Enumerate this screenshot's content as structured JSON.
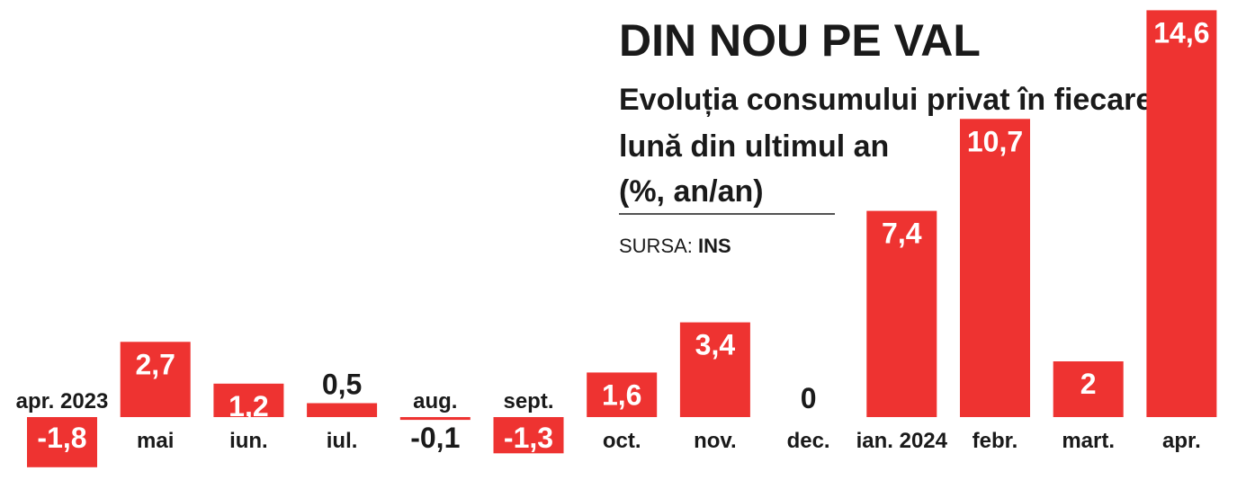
{
  "header": {
    "title": "DIN NOU PE VAL",
    "subtitle_lines": [
      "Evoluția consumului privat în fiecare",
      "lună din ultimul an",
      "(%, an/an)"
    ],
    "source_label": "SURSA:",
    "source_value": "INS"
  },
  "colors": {
    "bar": "#ee3331",
    "text": "#1a1a1a",
    "value_on_bar": "#ffffff"
  },
  "chart_data": {
    "type": "bar",
    "title": "DIN NOU PE VAL",
    "subtitle": "Evoluția consumului privat în fiecare lună din ultimul an (%, an/an)",
    "categories": [
      "apr. 2023",
      "mai",
      "iun.",
      "iul.",
      "aug.",
      "sept.",
      "oct.",
      "nov.",
      "dec.",
      "ian. 2024",
      "febr.",
      "mart.",
      "apr."
    ],
    "values": [
      -1.8,
      2.7,
      1.2,
      0.5,
      -0.1,
      -1.3,
      1.6,
      3.4,
      0,
      7.4,
      10.7,
      2,
      14.6
    ],
    "value_labels": [
      "-1,8",
      "2,7",
      "1,2",
      "0,5",
      "-0,1",
      "-1,3",
      "1,6",
      "3,4",
      "0",
      "7,4",
      "10,7",
      "2",
      "14,6"
    ],
    "unit": "%, an/an",
    "source": "INS",
    "grid": false,
    "legend": "none"
  }
}
